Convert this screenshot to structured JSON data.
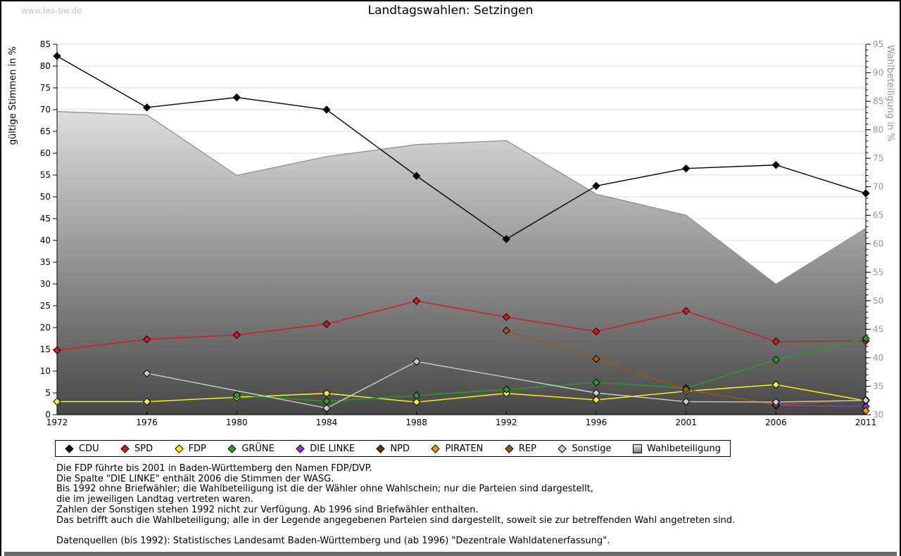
{
  "page": {
    "watermark": "www.leo-bw.de",
    "title": "Landtagswahlen: Setzingen",
    "footer_bar_color": "#6b6b6b",
    "watermark_color": "#c3c3c3"
  },
  "chart_data": {
    "type": "line",
    "title": "Landtagswahlen: Setzingen",
    "x_categories": [
      "1972",
      "1976",
      "1980",
      "1984",
      "1988",
      "1992",
      "1996",
      "2001",
      "2006",
      "2011"
    ],
    "left_axis": {
      "title": "gültige Stimmen in %",
      "min": 0,
      "max": 85,
      "tick_step": 5
    },
    "right_axis": {
      "title": "Wahlbeteiligung in %",
      "min": 30,
      "max": 95,
      "tick_step": 5,
      "minor_tick_step": 1
    },
    "grid": true,
    "legend_position": "bottom",
    "series": [
      {
        "name": "CDU",
        "type": "line",
        "axis": "left",
        "color": "#000000",
        "values": [
          82.3,
          70.5,
          72.8,
          70.0,
          54.8,
          40.3,
          52.5,
          56.5,
          57.3,
          50.8
        ]
      },
      {
        "name": "SPD",
        "type": "line",
        "axis": "left",
        "color": "#e01414",
        "values": [
          14.8,
          17.3,
          18.3,
          20.8,
          26.1,
          22.4,
          19.1,
          23.8,
          16.8,
          16.9
        ]
      },
      {
        "name": "FDP",
        "type": "line",
        "axis": "left",
        "color": "#ffff00",
        "values": [
          3.0,
          3.0,
          4.0,
          4.9,
          2.9,
          4.9,
          3.4,
          5.4,
          6.9,
          3.2
        ]
      },
      {
        "name": "GRÜNE",
        "type": "line",
        "axis": "left",
        "color": "#1ea41e",
        "values": [
          null,
          null,
          4.5,
          3.1,
          4.4,
          5.8,
          7.4,
          6.1,
          12.6,
          17.5
        ]
      },
      {
        "name": "DIE LINKE",
        "type": "line",
        "axis": "left",
        "color": "#9932cc",
        "values": [
          null,
          null,
          null,
          null,
          null,
          null,
          null,
          null,
          2.1,
          1.9
        ]
      },
      {
        "name": "NPD",
        "type": "line",
        "axis": "left",
        "color": "#5a3a1a",
        "values": [
          null,
          null,
          null,
          null,
          null,
          null,
          null,
          null,
          null,
          null
        ]
      },
      {
        "name": "PIRATEN",
        "type": "line",
        "axis": "left",
        "color": "#f0941e",
        "values": [
          null,
          null,
          null,
          null,
          null,
          null,
          null,
          null,
          null,
          0.9
        ]
      },
      {
        "name": "REP",
        "type": "line",
        "axis": "left",
        "color": "#a3570f",
        "values": [
          null,
          null,
          null,
          null,
          null,
          19.3,
          12.8,
          5.8,
          2.3,
          3.4
        ]
      },
      {
        "name": "Sonstige",
        "type": "line",
        "axis": "left",
        "color": "#cdcdcd",
        "values": [
          null,
          9.5,
          null,
          1.5,
          12.2,
          null,
          5.0,
          3.0,
          2.9,
          3.3
        ]
      },
      {
        "name": "Wahlbeteiligung",
        "type": "area",
        "axis": "right",
        "color": "#8f8f8f",
        "fill_top": "#ffffff",
        "fill_bottom": "#474747",
        "values": [
          83.2,
          82.6,
          72.0,
          75.3,
          77.4,
          78.1,
          68.7,
          65.0,
          52.9,
          62.7
        ]
      }
    ],
    "style": {
      "grid_color": "#d9d9d9",
      "axis_color": "#000000",
      "left_tick_label_color": "#000000",
      "right_tick_label_color": "#969696",
      "right_axis_title_color": "#969696",
      "left_axis_title_color": "#000000"
    }
  },
  "footnotes": [
    "Die FDP führte bis 2001 in Baden-Württemberg den Namen FDP/DVP.",
    "Die Spalte \"DIE LINKE\" enthält 2006 die Stimmen der WASG.",
    "Bis 1992 ohne Briefwähler; die Wahlbeteiligung ist die der Wähler ohne Wahlschein; nur die Parteien sind dargestellt,",
    "die im jeweiligen Landtag vertreten waren.",
    "Zahlen der Sonstigen stehen 1992 nicht zur Verfügung. Ab 1996 sind Briefwähler enthalten.",
    "Das betrifft auch die Wahlbeteiligung; alle in der Legende angegebenen Parteien sind dargestellt, soweit sie zur betreffenden Wahl angetreten sind.",
    "",
    "Datenquellen (bis 1992): Statistisches Landesamt Baden-Württemberg und (ab 1996) \"Dezentrale Wahldatenerfassung\"."
  ]
}
